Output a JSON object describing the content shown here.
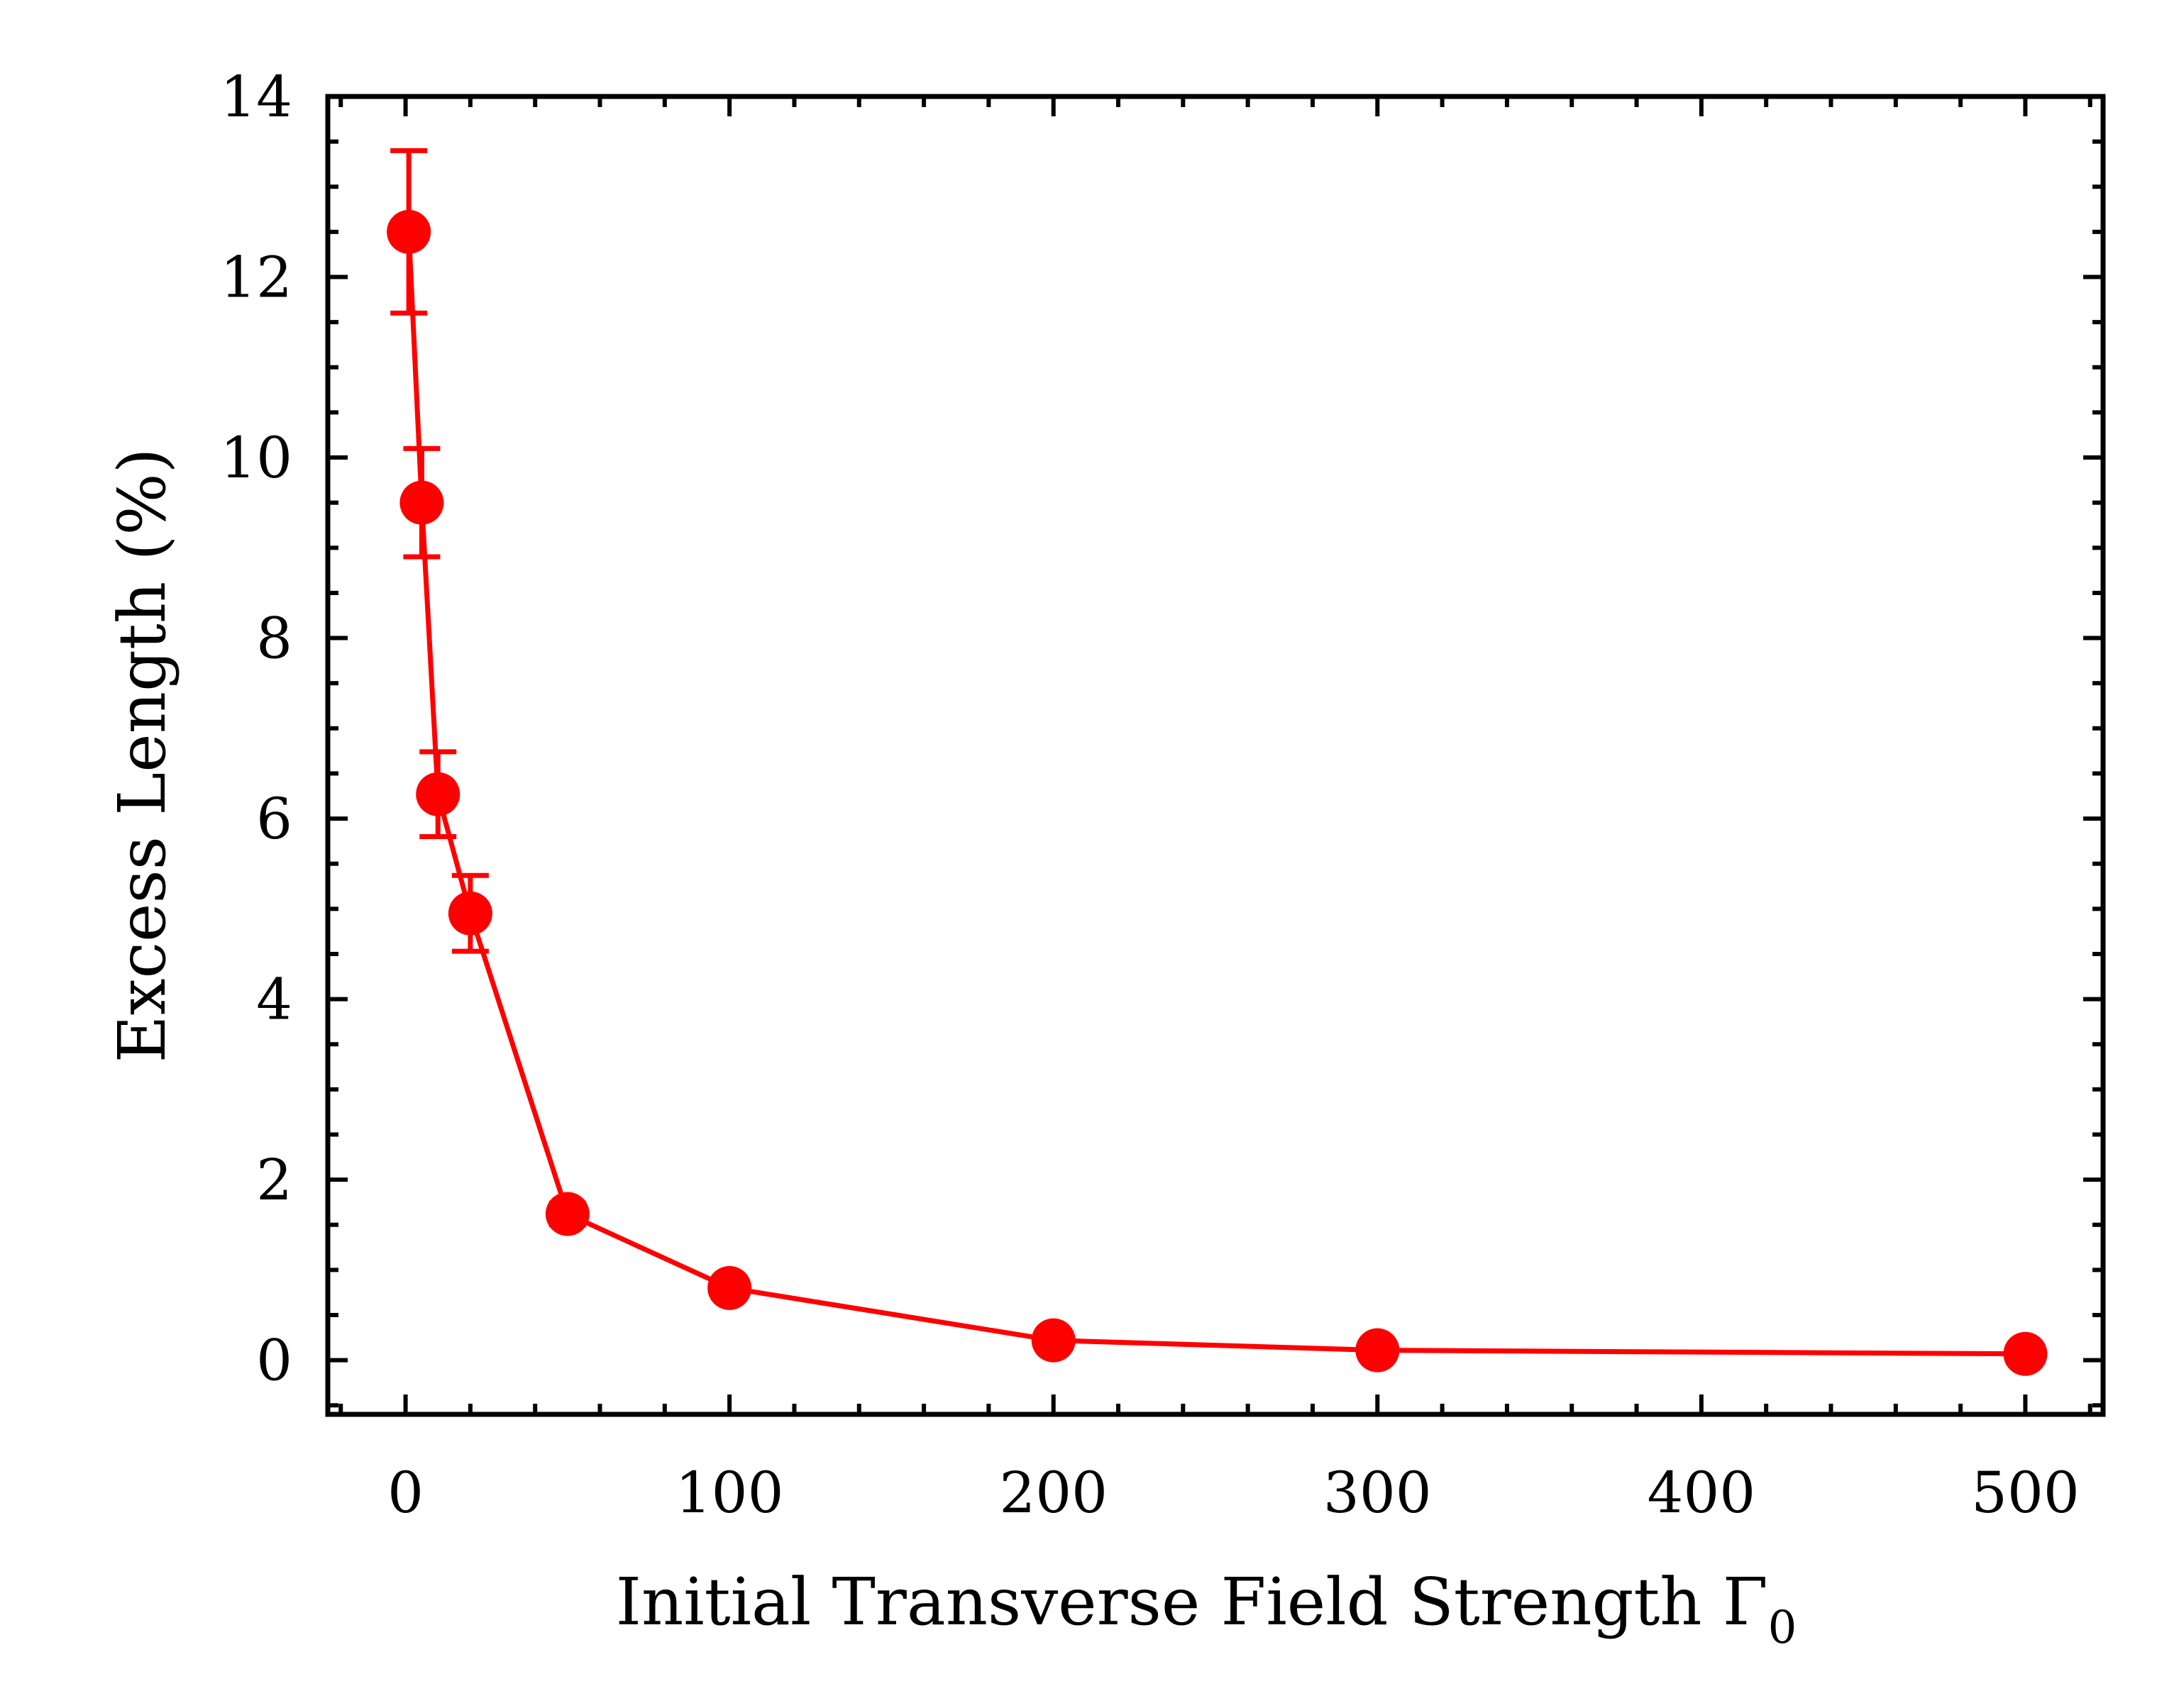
{
  "chart_data": {
    "type": "line",
    "xlabel": "Initial Transverse Field Strength Γ",
    "xlabel_subscript": "0",
    "ylabel": "Excess Length (%)",
    "xlim": [
      -24,
      524
    ],
    "ylim": [
      -0.6,
      14
    ],
    "x_ticks": [
      0,
      100,
      200,
      300,
      400,
      500
    ],
    "x_tick_labels": [
      "0",
      "100",
      "200",
      "300",
      "400",
      "500"
    ],
    "y_ticks": [
      0,
      2,
      4,
      6,
      8,
      10,
      12,
      14
    ],
    "y_tick_labels": [
      "0",
      "2",
      "4",
      "6",
      "8",
      "10",
      "12",
      "14"
    ],
    "x_minor_step": 20,
    "y_minor_step": 0.5,
    "grid": false,
    "series": [
      {
        "color": "#ff0000",
        "marker": "circle",
        "x": [
          1,
          5,
          10,
          20,
          50,
          100,
          200,
          300,
          500
        ],
        "y": [
          12.5,
          9.5,
          6.27,
          4.95,
          1.62,
          0.8,
          0.22,
          0.11,
          0.07
        ],
        "yerr": [
          0.9,
          0.6,
          0.47,
          0.42,
          0.12,
          0.06,
          0.03,
          0.02,
          0.02
        ]
      }
    ]
  }
}
